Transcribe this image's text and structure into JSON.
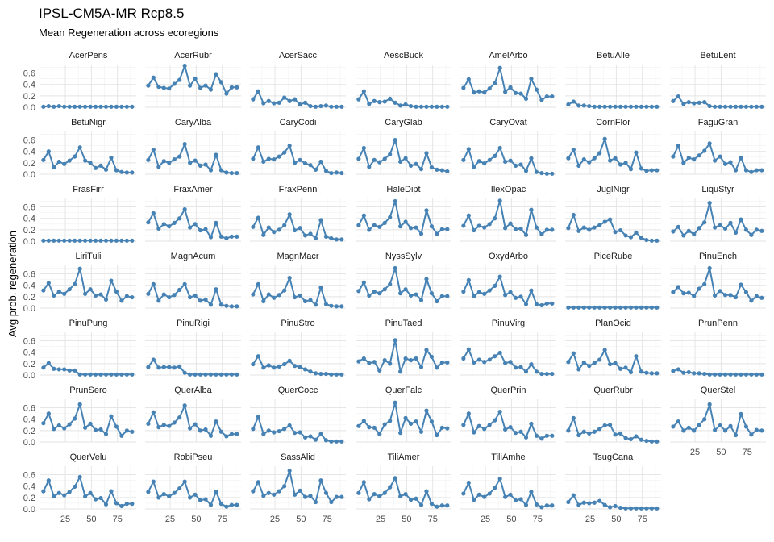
{
  "chart_data": {
    "type": "line",
    "title": "IPSL-CM5A-MR Rcp8.5",
    "subtitle": "Mean Regeneration across ecoregions",
    "xlabel": "",
    "ylabel": "Avg prob. regeneration",
    "series_color": "#4682b4",
    "xlim": [
      1,
      93
    ],
    "ylim": [
      0,
      0.75
    ],
    "x_ticks": [
      25,
      50,
      75
    ],
    "y_ticks": [
      0.0,
      0.2,
      0.4,
      0.6
    ],
    "y_tick_labels": [
      "0.0",
      "0.2",
      "0.4",
      "0.6"
    ],
    "grid": true,
    "x": [
      4,
      9,
      14,
      19,
      24,
      29,
      34,
      39,
      44,
      49,
      54,
      59,
      64,
      69,
      74,
      79,
      84,
      89
    ],
    "panels": [
      {
        "name": "AcerPens",
        "values": [
          0.01,
          0.02,
          0.01,
          0.02,
          0.01,
          0.01,
          0.01,
          0.01,
          0.01,
          0.01,
          0.01,
          0.01,
          0.01,
          0.01,
          0.01,
          0.01,
          0.01,
          0.01
        ]
      },
      {
        "name": "AcerRubr",
        "values": [
          0.38,
          0.52,
          0.36,
          0.34,
          0.33,
          0.41,
          0.48,
          0.73,
          0.38,
          0.5,
          0.34,
          0.38,
          0.31,
          0.58,
          0.44,
          0.24,
          0.35,
          0.35
        ]
      },
      {
        "name": "AcerSacc",
        "values": [
          0.14,
          0.28,
          0.07,
          0.11,
          0.07,
          0.08,
          0.17,
          0.11,
          0.14,
          0.05,
          0.08,
          0.02,
          0.01,
          0.02,
          0.03,
          0.01,
          0.01,
          0.01
        ]
      },
      {
        "name": "AescBuck",
        "values": [
          0.14,
          0.28,
          0.06,
          0.11,
          0.09,
          0.1,
          0.15,
          0.08,
          0.03,
          0.05,
          0.02,
          0.01,
          0.01,
          0.01,
          0.01,
          0.01,
          0.01,
          0.01
        ]
      },
      {
        "name": "AmelArbo",
        "values": [
          0.34,
          0.49,
          0.26,
          0.28,
          0.26,
          0.33,
          0.42,
          0.69,
          0.27,
          0.35,
          0.25,
          0.24,
          0.15,
          0.5,
          0.31,
          0.13,
          0.19,
          0.19
        ]
      },
      {
        "name": "BetuAlle",
        "values": [
          0.05,
          0.1,
          0.03,
          0.03,
          0.02,
          0.01,
          0.01,
          0.01,
          0.01,
          0.01,
          0.01,
          0.01,
          0.01,
          0.01,
          0.01,
          0.01,
          0.01,
          0.01
        ]
      },
      {
        "name": "BetuLent",
        "values": [
          0.11,
          0.19,
          0.06,
          0.09,
          0.07,
          0.08,
          0.09,
          0.02,
          0.01,
          0.01,
          0.01,
          0.01,
          0.01,
          0.01,
          0.01,
          0.01,
          0.01,
          0.01
        ]
      },
      {
        "name": "BetuNigr",
        "values": [
          0.25,
          0.4,
          0.12,
          0.22,
          0.18,
          0.24,
          0.31,
          0.47,
          0.24,
          0.2,
          0.11,
          0.15,
          0.08,
          0.29,
          0.07,
          0.04,
          0.03,
          0.03
        ]
      },
      {
        "name": "CaryAlba",
        "values": [
          0.25,
          0.43,
          0.13,
          0.23,
          0.2,
          0.26,
          0.31,
          0.53,
          0.2,
          0.24,
          0.15,
          0.17,
          0.07,
          0.34,
          0.07,
          0.03,
          0.02,
          0.02
        ]
      },
      {
        "name": "CaryCodi",
        "values": [
          0.27,
          0.47,
          0.22,
          0.27,
          0.26,
          0.31,
          0.38,
          0.5,
          0.2,
          0.25,
          0.19,
          0.16,
          0.08,
          0.22,
          0.06,
          0.02,
          0.03,
          0.02
        ]
      },
      {
        "name": "CaryGlab",
        "values": [
          0.27,
          0.46,
          0.13,
          0.25,
          0.21,
          0.27,
          0.35,
          0.6,
          0.22,
          0.28,
          0.15,
          0.18,
          0.09,
          0.37,
          0.12,
          0.08,
          0.07,
          0.05
        ]
      },
      {
        "name": "CaryOvat",
        "values": [
          0.25,
          0.44,
          0.13,
          0.23,
          0.19,
          0.25,
          0.32,
          0.46,
          0.22,
          0.24,
          0.15,
          0.17,
          0.06,
          0.28,
          0.04,
          0.02,
          0.01,
          0.01
        ]
      },
      {
        "name": "CornFlor",
        "values": [
          0.28,
          0.43,
          0.15,
          0.26,
          0.21,
          0.28,
          0.37,
          0.62,
          0.24,
          0.28,
          0.17,
          0.2,
          0.09,
          0.38,
          0.1,
          0.06,
          0.07,
          0.07
        ]
      },
      {
        "name": "FaguGran",
        "values": [
          0.31,
          0.5,
          0.2,
          0.29,
          0.26,
          0.33,
          0.41,
          0.54,
          0.24,
          0.31,
          0.18,
          0.21,
          0.07,
          0.29,
          0.07,
          0.04,
          0.07,
          0.07
        ]
      },
      {
        "name": "FrasFirr",
        "values": [
          0.01,
          0.01,
          0.01,
          0.01,
          0.01,
          0.01,
          0.01,
          0.01,
          0.01,
          0.01,
          0.01,
          0.01,
          0.01,
          0.01,
          0.01,
          0.01,
          0.01,
          0.01
        ]
      },
      {
        "name": "FraxAmer",
        "values": [
          0.33,
          0.49,
          0.22,
          0.3,
          0.26,
          0.32,
          0.4,
          0.56,
          0.24,
          0.3,
          0.19,
          0.21,
          0.07,
          0.32,
          0.08,
          0.05,
          0.08,
          0.08
        ]
      },
      {
        "name": "FraxPenn",
        "values": [
          0.25,
          0.41,
          0.11,
          0.24,
          0.16,
          0.2,
          0.28,
          0.47,
          0.19,
          0.23,
          0.1,
          0.13,
          0.05,
          0.37,
          0.08,
          0.05,
          0.03,
          0.03
        ]
      },
      {
        "name": "HaleDipt",
        "values": [
          0.28,
          0.45,
          0.2,
          0.28,
          0.25,
          0.32,
          0.42,
          0.7,
          0.26,
          0.34,
          0.23,
          0.24,
          0.13,
          0.54,
          0.26,
          0.13,
          0.21,
          0.21
        ]
      },
      {
        "name": "IlexOpac",
        "values": [
          0.27,
          0.45,
          0.19,
          0.27,
          0.24,
          0.3,
          0.4,
          0.71,
          0.23,
          0.31,
          0.21,
          0.22,
          0.11,
          0.55,
          0.24,
          0.12,
          0.2,
          0.2
        ]
      },
      {
        "name": "JuglNigr",
        "values": [
          0.23,
          0.46,
          0.18,
          0.24,
          0.2,
          0.24,
          0.28,
          0.34,
          0.38,
          0.16,
          0.19,
          0.1,
          0.07,
          0.15,
          0.06,
          0.02,
          0.01,
          0.01
        ]
      },
      {
        "name": "LiquStyr",
        "values": [
          0.17,
          0.25,
          0.1,
          0.18,
          0.12,
          0.23,
          0.33,
          0.67,
          0.24,
          0.28,
          0.22,
          0.32,
          0.15,
          0.38,
          0.2,
          0.11,
          0.2,
          0.18
        ]
      },
      {
        "name": "LiriTuli",
        "values": [
          0.31,
          0.44,
          0.22,
          0.29,
          0.25,
          0.33,
          0.42,
          0.69,
          0.25,
          0.33,
          0.22,
          0.24,
          0.15,
          0.48,
          0.29,
          0.13,
          0.21,
          0.19
        ]
      },
      {
        "name": "MagnAcum",
        "values": [
          0.25,
          0.42,
          0.13,
          0.24,
          0.19,
          0.23,
          0.32,
          0.42,
          0.19,
          0.22,
          0.13,
          0.15,
          0.06,
          0.33,
          0.06,
          0.04,
          0.03,
          0.03
        ]
      },
      {
        "name": "MagnMacr",
        "values": [
          0.24,
          0.42,
          0.12,
          0.24,
          0.18,
          0.23,
          0.31,
          0.53,
          0.19,
          0.22,
          0.12,
          0.14,
          0.06,
          0.36,
          0.07,
          0.04,
          0.03,
          0.03
        ]
      },
      {
        "name": "NyssSylv",
        "values": [
          0.3,
          0.45,
          0.22,
          0.29,
          0.26,
          0.33,
          0.42,
          0.7,
          0.26,
          0.33,
          0.22,
          0.24,
          0.14,
          0.51,
          0.26,
          0.12,
          0.21,
          0.21
        ]
      },
      {
        "name": "OxydArbo",
        "values": [
          0.29,
          0.49,
          0.21,
          0.28,
          0.25,
          0.31,
          0.39,
          0.55,
          0.23,
          0.28,
          0.18,
          0.2,
          0.07,
          0.31,
          0.07,
          0.05,
          0.08,
          0.08
        ]
      },
      {
        "name": "PiceRube",
        "values": [
          0.01,
          0.01,
          0.01,
          0.01,
          0.01,
          0.01,
          0.01,
          0.01,
          0.01,
          0.01,
          0.01,
          0.01,
          0.01,
          0.01,
          0.01,
          0.01,
          0.01,
          0.01
        ]
      },
      {
        "name": "PinuEnch",
        "values": [
          0.28,
          0.37,
          0.26,
          0.27,
          0.21,
          0.34,
          0.42,
          0.7,
          0.22,
          0.3,
          0.23,
          0.23,
          0.19,
          0.41,
          0.28,
          0.13,
          0.21,
          0.18
        ]
      },
      {
        "name": "PinuPung",
        "values": [
          0.13,
          0.21,
          0.11,
          0.1,
          0.1,
          0.08,
          0.08,
          0.01,
          0.01,
          0.01,
          0.01,
          0.01,
          0.01,
          0.01,
          0.01,
          0.01,
          0.01,
          0.01
        ]
      },
      {
        "name": "PinuRigi",
        "values": [
          0.14,
          0.27,
          0.13,
          0.14,
          0.14,
          0.13,
          0.15,
          0.04,
          0.01,
          0.01,
          0.01,
          0.01,
          0.01,
          0.01,
          0.01,
          0.01,
          0.01,
          0.01
        ]
      },
      {
        "name": "PinuStro",
        "values": [
          0.19,
          0.33,
          0.13,
          0.17,
          0.13,
          0.15,
          0.19,
          0.25,
          0.16,
          0.14,
          0.1,
          0.06,
          0.03,
          0.02,
          0.02,
          0.01,
          0.01,
          0.01
        ]
      },
      {
        "name": "PinuTaed",
        "values": [
          0.24,
          0.29,
          0.21,
          0.23,
          0.08,
          0.26,
          0.2,
          0.61,
          0.06,
          0.29,
          0.26,
          0.29,
          0.14,
          0.44,
          0.32,
          0.13,
          0.22,
          0.22
        ]
      },
      {
        "name": "PinuVirg",
        "values": [
          0.29,
          0.45,
          0.22,
          0.27,
          0.23,
          0.27,
          0.33,
          0.39,
          0.21,
          0.23,
          0.13,
          0.14,
          0.06,
          0.19,
          0.06,
          0.02,
          0.02,
          0.02
        ]
      },
      {
        "name": "PlanOcid",
        "values": [
          0.23,
          0.38,
          0.1,
          0.22,
          0.16,
          0.21,
          0.27,
          0.44,
          0.19,
          0.21,
          0.11,
          0.13,
          0.05,
          0.33,
          0.06,
          0.04,
          0.03,
          0.03
        ]
      },
      {
        "name": "PrunPenn",
        "values": [
          0.07,
          0.1,
          0.04,
          0.05,
          0.03,
          0.03,
          0.02,
          0.01,
          0.01,
          0.01,
          0.01,
          0.01,
          0.01,
          0.01,
          0.01,
          0.01,
          0.01,
          0.01
        ]
      },
      {
        "name": "PrunSero",
        "values": [
          0.33,
          0.5,
          0.23,
          0.29,
          0.24,
          0.31,
          0.41,
          0.66,
          0.25,
          0.32,
          0.21,
          0.22,
          0.14,
          0.45,
          0.27,
          0.11,
          0.2,
          0.18
        ]
      },
      {
        "name": "QuerAlba",
        "values": [
          0.32,
          0.52,
          0.26,
          0.3,
          0.28,
          0.34,
          0.43,
          0.64,
          0.24,
          0.31,
          0.2,
          0.22,
          0.11,
          0.36,
          0.18,
          0.1,
          0.14,
          0.14
        ]
      },
      {
        "name": "QuerCocc",
        "values": [
          0.23,
          0.44,
          0.14,
          0.2,
          0.17,
          0.19,
          0.23,
          0.29,
          0.16,
          0.17,
          0.08,
          0.1,
          0.04,
          0.14,
          0.03,
          0.01,
          0.01,
          0.01
        ]
      },
      {
        "name": "QuerFalc",
        "values": [
          0.28,
          0.37,
          0.26,
          0.25,
          0.14,
          0.31,
          0.37,
          0.69,
          0.16,
          0.42,
          0.32,
          0.36,
          0.18,
          0.55,
          0.36,
          0.12,
          0.25,
          0.24
        ]
      },
      {
        "name": "QuerPrin",
        "values": [
          0.3,
          0.5,
          0.17,
          0.28,
          0.23,
          0.3,
          0.38,
          0.53,
          0.22,
          0.26,
          0.16,
          0.18,
          0.08,
          0.32,
          0.11,
          0.06,
          0.11,
          0.11
        ]
      },
      {
        "name": "QuerRubr",
        "values": [
          0.2,
          0.42,
          0.12,
          0.18,
          0.15,
          0.18,
          0.23,
          0.29,
          0.3,
          0.13,
          0.15,
          0.07,
          0.05,
          0.1,
          0.04,
          0.02,
          0.01,
          0.01
        ]
      },
      {
        "name": "QuerStel",
        "values": [
          0.27,
          0.36,
          0.2,
          0.25,
          0.2,
          0.3,
          0.4,
          0.66,
          0.21,
          0.29,
          0.2,
          0.28,
          0.12,
          0.49,
          0.27,
          0.13,
          0.21,
          0.2
        ]
      },
      {
        "name": "QuerVelu",
        "values": [
          0.31,
          0.5,
          0.22,
          0.28,
          0.24,
          0.3,
          0.39,
          0.56,
          0.22,
          0.28,
          0.17,
          0.19,
          0.08,
          0.31,
          0.1,
          0.05,
          0.09,
          0.09
        ]
      },
      {
        "name": "RobiPseu",
        "values": [
          0.3,
          0.48,
          0.2,
          0.26,
          0.22,
          0.28,
          0.36,
          0.48,
          0.2,
          0.25,
          0.15,
          0.17,
          0.07,
          0.3,
          0.09,
          0.04,
          0.07,
          0.07
        ]
      },
      {
        "name": "SassAlid",
        "values": [
          0.31,
          0.47,
          0.23,
          0.28,
          0.25,
          0.31,
          0.4,
          0.67,
          0.25,
          0.32,
          0.21,
          0.23,
          0.12,
          0.5,
          0.28,
          0.12,
          0.21,
          0.21
        ]
      },
      {
        "name": "TiliAmer",
        "values": [
          0.28,
          0.47,
          0.17,
          0.26,
          0.22,
          0.28,
          0.38,
          0.54,
          0.22,
          0.26,
          0.16,
          0.18,
          0.07,
          0.31,
          0.09,
          0.04,
          0.06,
          0.06
        ]
      },
      {
        "name": "TiliAmhe",
        "values": [
          0.27,
          0.46,
          0.16,
          0.25,
          0.21,
          0.27,
          0.37,
          0.53,
          0.21,
          0.25,
          0.15,
          0.17,
          0.07,
          0.3,
          0.08,
          0.03,
          0.06,
          0.06
        ]
      },
      {
        "name": "TsugCana",
        "values": [
          0.12,
          0.24,
          0.07,
          0.11,
          0.1,
          0.11,
          0.14,
          0.07,
          0.03,
          0.05,
          0.02,
          0.01,
          0.01,
          0.01,
          0.01,
          0.01,
          0.01,
          0.01
        ]
      }
    ]
  }
}
